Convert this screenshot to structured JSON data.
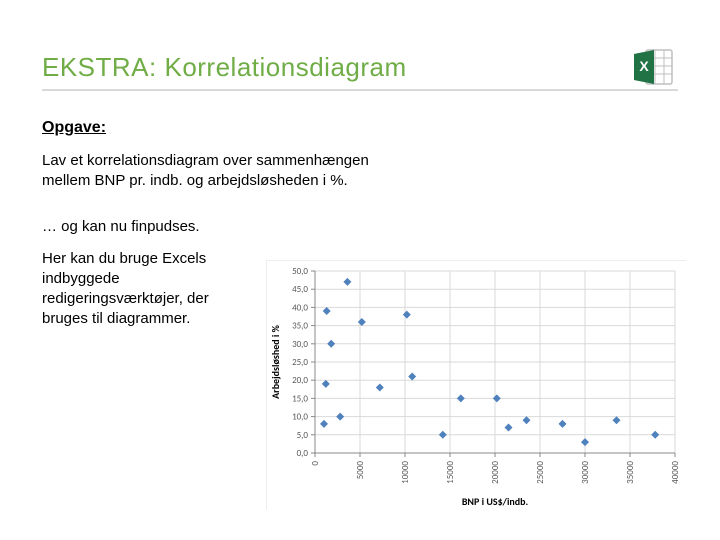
{
  "title": "EKSTRA: Korrelationsdiagram",
  "subheading": "Opgave:",
  "task": "Lav et korrelationsdiagram over sammenhængen mellem BNP pr. indb. og arbejdsløsheden i %.",
  "note": "… og kan nu finpudses.",
  "desc": "Her kan du bruge Excels indbyggede redigeringsværktøjer, der bruges til diagrammer.",
  "chart": {
    "type": "scatter",
    "ylabel": "Arbejdsløshed i %",
    "xlabel": "BNP i US$/indb.",
    "ylim": [
      0,
      50
    ],
    "ytick_step": 5,
    "xlim": [
      0,
      40000
    ],
    "xtick_step": 5000,
    "xtick_labels": [
      "0",
      "5000",
      "10000",
      "15000",
      "20000",
      "25000",
      "30000",
      "35000",
      "40000"
    ],
    "ytick_labels": [
      "0,0",
      "5,0",
      "10,0",
      "15,0",
      "20,0",
      "25,0",
      "30,0",
      "35,0",
      "40,0",
      "45,0",
      "50,0"
    ],
    "points": [
      [
        1000,
        8
      ],
      [
        1200,
        19
      ],
      [
        1300,
        39
      ],
      [
        1800,
        30
      ],
      [
        2800,
        10
      ],
      [
        3600,
        47
      ],
      [
        5200,
        36
      ],
      [
        7200,
        18
      ],
      [
        10200,
        38
      ],
      [
        10800,
        21
      ],
      [
        14200,
        5
      ],
      [
        16200,
        15
      ],
      [
        20200,
        15
      ],
      [
        21500,
        7
      ],
      [
        23500,
        9
      ],
      [
        27500,
        8
      ],
      [
        30000,
        3
      ],
      [
        33500,
        9
      ],
      [
        37800,
        5
      ]
    ],
    "marker_color": "#4f81bd",
    "marker_size": 4,
    "grid_color": "#d9d9d9",
    "axis_color": "#898989",
    "tick_label_color": "#595959",
    "tick_fontsize": 9,
    "axis_label_fontsize": 10,
    "background_color": "#ffffff"
  },
  "colors": {
    "title": "#70ad47",
    "rule": "#d9d9d9"
  }
}
